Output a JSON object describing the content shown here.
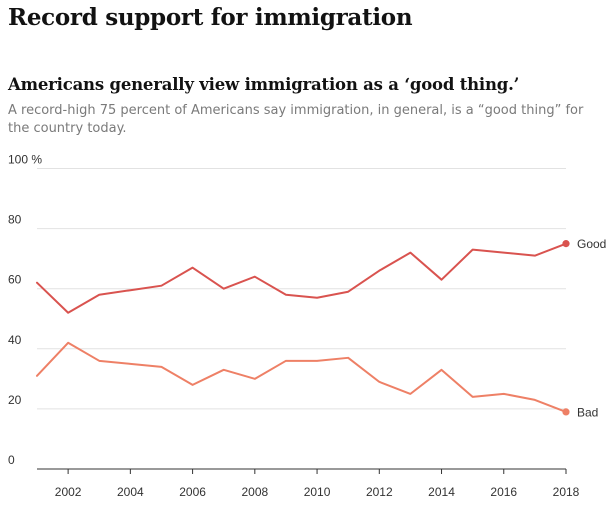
{
  "header": {
    "title": "Record support for immigration"
  },
  "chart_data": {
    "type": "line",
    "title": "Americans generally view immigration as a ‘good thing.’",
    "subtitle": "A record-high 75 percent of Americans say immigration, in general, is a “good thing” for the country today.",
    "xlabel": "",
    "ylabel": "",
    "y_unit": "%",
    "ylim": [
      0,
      100
    ],
    "xlim": [
      2001,
      2018
    ],
    "y_ticks": [
      0,
      20,
      40,
      60,
      80,
      100
    ],
    "y_tick_labels": [
      "0",
      "20",
      "40",
      "60",
      "80",
      "100 %"
    ],
    "x_ticks": [
      2002,
      2004,
      2006,
      2008,
      2010,
      2012,
      2014,
      2016,
      2018
    ],
    "x_tick_labels": [
      "2002",
      "2004",
      "2006",
      "2008",
      "2010",
      "2012",
      "2014",
      "2016",
      "2018"
    ],
    "grid": true,
    "legend": "direct labels at line ends (right)",
    "x": [
      2001,
      2002,
      2003,
      2004,
      2005,
      2006,
      2007,
      2008,
      2009,
      2010,
      2011,
      2012,
      2013,
      2014,
      2015,
      2016,
      2017,
      2018
    ],
    "series": [
      {
        "name": "Good",
        "color": "#d9534f",
        "values": [
          62,
          52,
          58,
          59.5,
          61,
          67,
          60,
          64,
          58,
          57,
          59,
          66,
          72,
          63,
          73,
          72,
          71,
          75
        ]
      },
      {
        "name": "Bad",
        "color": "#ee8066",
        "values": [
          31,
          42,
          36,
          35,
          34,
          28,
          33,
          30,
          36,
          36,
          37,
          29,
          25,
          33,
          24,
          25,
          23,
          19
        ]
      }
    ]
  }
}
